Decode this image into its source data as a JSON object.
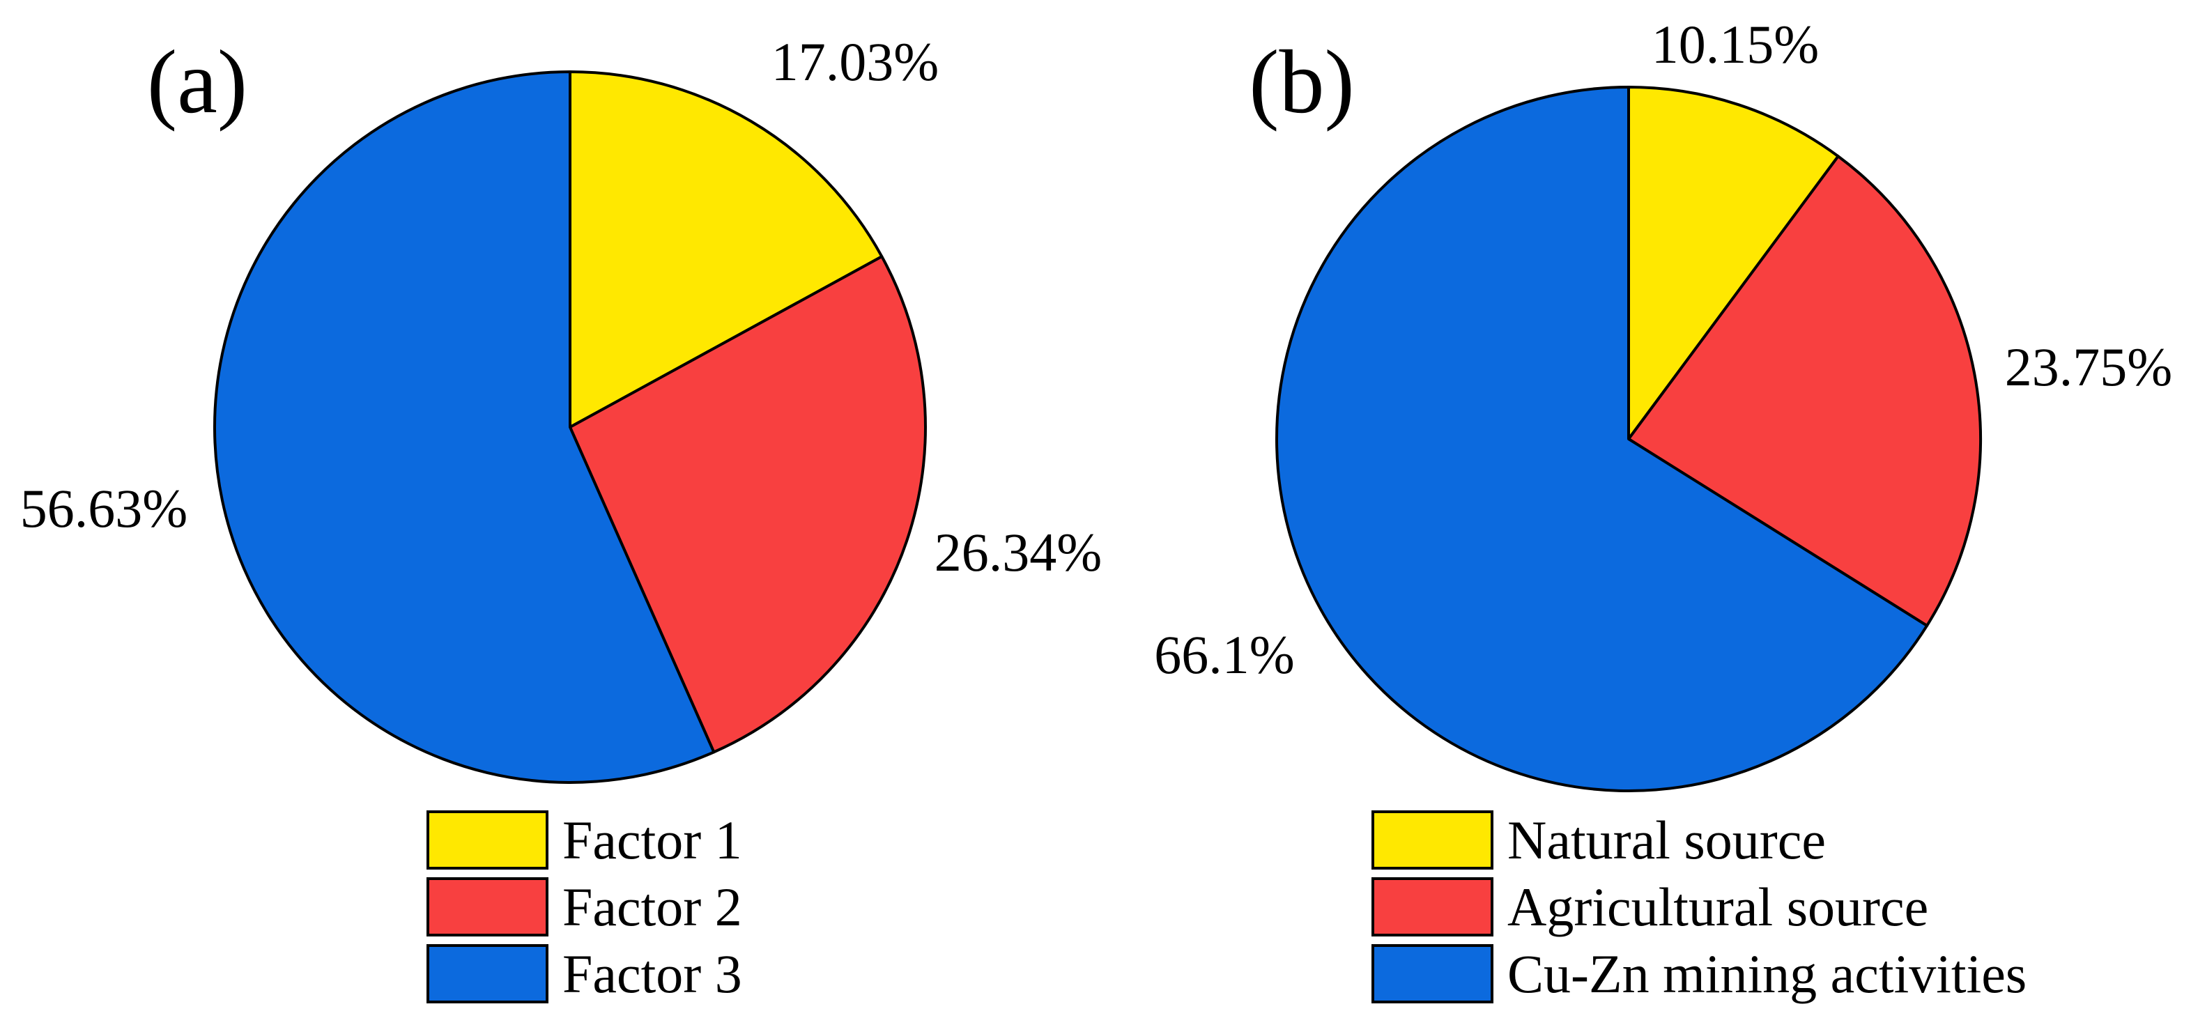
{
  "stroke_color": "#000000",
  "chart_data": [
    {
      "type": "pie",
      "panel_tag": "(a)",
      "start_angle_deg": -90,
      "direction": "clockwise",
      "legend_position": "bottom",
      "slices": [
        {
          "label": "Factor 1",
          "value_pct": 17.03,
          "display": "17.03%",
          "color": "#ffe800"
        },
        {
          "label": "Factor 2",
          "value_pct": 26.34,
          "display": "26.34%",
          "color": "#f84040"
        },
        {
          "label": "Factor 3",
          "value_pct": 56.63,
          "display": "56.63%",
          "color": "#0c6ade"
        }
      ]
    },
    {
      "type": "pie",
      "panel_tag": "(b)",
      "start_angle_deg": -90,
      "direction": "clockwise",
      "legend_position": "bottom",
      "slices": [
        {
          "label": "Natural source",
          "value_pct": 10.15,
          "display": "10.15%",
          "color": "#ffe800"
        },
        {
          "label": "Agricultural source",
          "value_pct": 23.75,
          "display": "23.75%",
          "color": "#f84040"
        },
        {
          "label": "Cu-Zn mining activities",
          "value_pct": 66.1,
          "display": "66.1%",
          "color": "#0c6ade"
        }
      ]
    }
  ]
}
